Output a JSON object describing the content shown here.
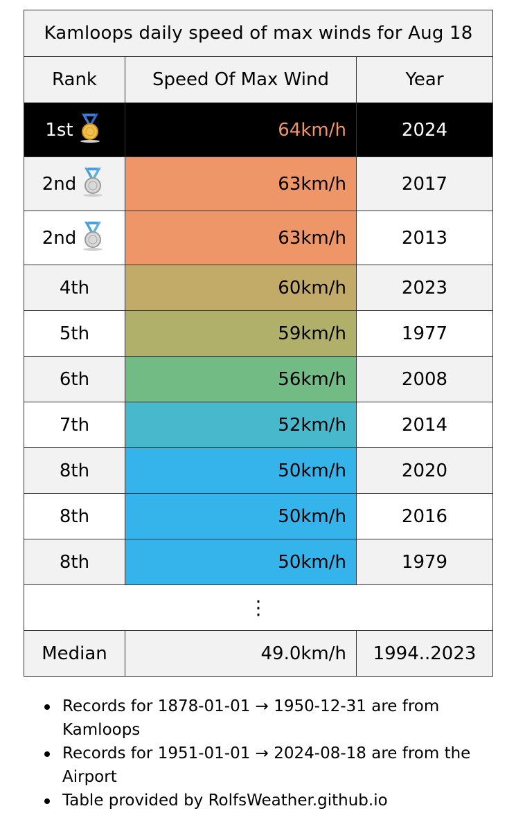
{
  "title": "Kamloops daily speed of max winds for Aug 18",
  "columns": {
    "rank": "Rank",
    "speed": "Speed Of Max Wind",
    "year": "Year"
  },
  "rows": [
    {
      "rank": "1st",
      "speed": "64km/h",
      "year": "2024",
      "medal": "gold-medal-icon",
      "color": "#000000",
      "text_color": "#f0946a"
    },
    {
      "rank": "2nd",
      "speed": "63km/h",
      "year": "2017",
      "medal": "silver-medal-icon",
      "color": "#ee9668"
    },
    {
      "rank": "2nd",
      "speed": "63km/h",
      "year": "2013",
      "medal": "silver-medal-icon",
      "color": "#ee9668"
    },
    {
      "rank": "4th",
      "speed": "60km/h",
      "year": "2023",
      "color": "#c2aa68"
    },
    {
      "rank": "5th",
      "speed": "59km/h",
      "year": "1977",
      "color": "#b1b06a"
    },
    {
      "rank": "6th",
      "speed": "56km/h",
      "year": "2008",
      "color": "#72bb85"
    },
    {
      "rank": "7th",
      "speed": "52km/h",
      "year": "2014",
      "color": "#48b9cc"
    },
    {
      "rank": "8th",
      "speed": "50km/h",
      "year": "2020",
      "color": "#35b4ec"
    },
    {
      "rank": "8th",
      "speed": "50km/h",
      "year": "2016",
      "color": "#35b4ec"
    },
    {
      "rank": "8th",
      "speed": "50km/h",
      "year": "1979",
      "color": "#35b4ec"
    }
  ],
  "ellipsis": "⋮",
  "median": {
    "label": "Median",
    "speed": "49.0km/h",
    "years": "1994..2023"
  },
  "notes": [
    "Records for 1878-01-01 → 1950-12-31 are from Kamloops",
    "Records for 1951-01-01 → 2024-08-18 are from the Airport",
    "Table provided by RolfsWeather.github.io"
  ]
}
